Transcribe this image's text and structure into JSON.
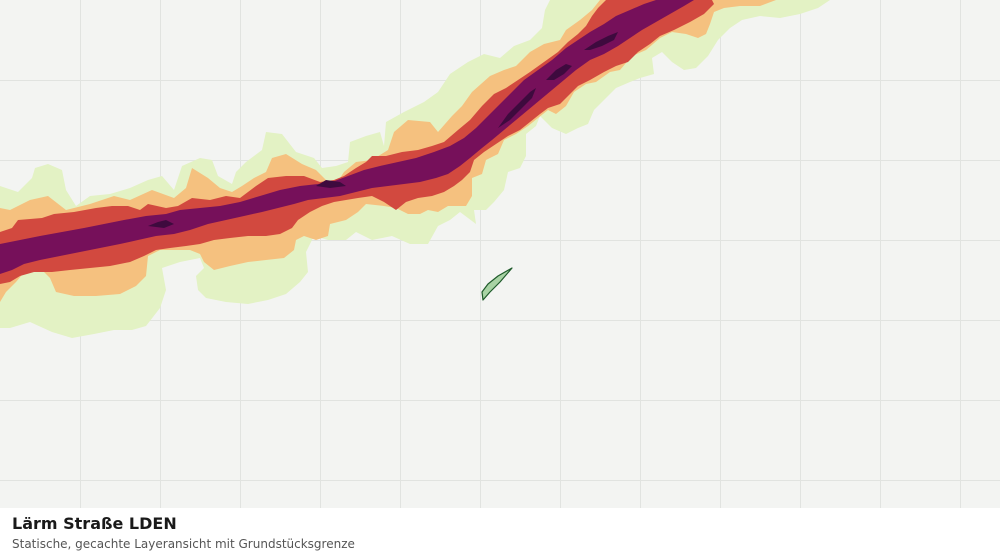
{
  "layer": {
    "title": "Lärm Straße LDEN",
    "subtitle": "Statische, gecachte Layeransicht mit Grundstücksgrenze"
  },
  "colors": {
    "map_background": "#f3f4f2",
    "grid_line": "#e1e3e0",
    "noise_band_1": "#e3f2c4",
    "noise_band_2": "#f5c17f",
    "noise_band_3": "#d2493f",
    "noise_band_4": "#76105a",
    "noise_band_5": "#3e0a3e",
    "parcel_fill": "#a8d3a4",
    "parcel_stroke": "#1e5a2a"
  }
}
